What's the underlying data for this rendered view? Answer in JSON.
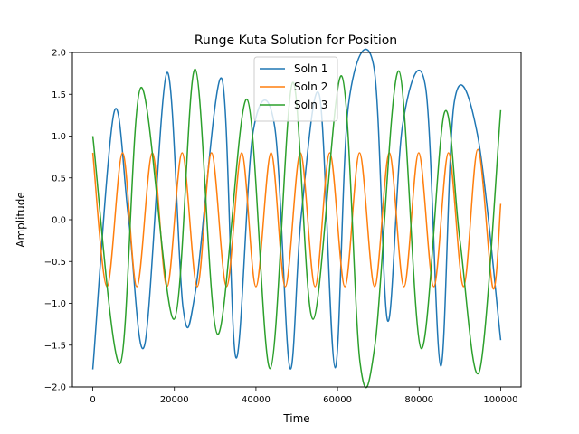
{
  "chart_data": {
    "type": "line",
    "title": "Runge Kuta Solution for Position",
    "xlabel": "Time",
    "ylabel": "Amplitude",
    "xlim": [
      -5000,
      105000
    ],
    "ylim": [
      -2.0,
      2.0
    ],
    "xticks": [
      0,
      20000,
      40000,
      60000,
      80000,
      100000
    ],
    "xtick_labels": [
      "0",
      "20000",
      "40000",
      "60000",
      "80000",
      "100000"
    ],
    "yticks": [
      -2.0,
      -1.5,
      -1.0,
      -0.5,
      0.0,
      0.5,
      1.0,
      1.5,
      2.0
    ],
    "ytick_labels": [
      "−2.0",
      "−1.5",
      "−1.0",
      "−0.5",
      "0.0",
      "0.5",
      "1.0",
      "1.5",
      "2.0"
    ],
    "grid": false,
    "legend_position": "top-center",
    "series": [
      {
        "name": "Soln 1",
        "color": "#1f77b4",
        "x": [
          0,
          5200,
          8800,
          12700,
          18200,
          22100,
          25200,
          31600,
          35100,
          39300,
          44600,
          48300,
          51100,
          55600,
          59400,
          62700,
          68900,
          72300,
          76000,
          81600,
          85300,
          88600,
          94300,
          100000
        ],
        "y": [
          -1.79,
          1.28,
          0.0,
          -1.5,
          1.76,
          -1.04,
          -0.85,
          1.69,
          -1.65,
          1.05,
          1.11,
          -1.77,
          0.05,
          1.48,
          -1.77,
          1.38,
          1.83,
          -1.21,
          1.15,
          1.58,
          -1.75,
          1.4,
          1.02,
          -1.44
        ]
      },
      {
        "name": "Soln 2",
        "color": "#ff7f0e",
        "x": [
          0,
          3500,
          7300,
          10800,
          14600,
          18200,
          21900,
          25600,
          29100,
          32800,
          36500,
          40000,
          43700,
          47200,
          50900,
          54500,
          58100,
          61800,
          65400,
          69100,
          72700,
          76300,
          79900,
          83600,
          87200,
          90900,
          94400,
          98100,
          100000
        ],
        "y": [
          0.8,
          -0.8,
          0.8,
          -0.8,
          0.8,
          -0.8,
          0.8,
          -0.8,
          0.8,
          -0.8,
          0.8,
          -0.8,
          0.8,
          -0.8,
          0.8,
          -0.8,
          0.8,
          -0.8,
          0.8,
          -0.8,
          0.8,
          -0.8,
          0.8,
          -0.8,
          0.8,
          -0.8,
          0.84,
          -0.82,
          0.19
        ]
      },
      {
        "name": "Soln 3",
        "color": "#2ca02c",
        "x": [
          0,
          6700,
          11800,
          19900,
          25100,
          30600,
          37800,
          43500,
          49000,
          54000,
          61000,
          65500,
          69300,
          75000,
          80500,
          86200,
          90000,
          94800,
          100000
        ],
        "y": [
          1.0,
          -1.72,
          1.58,
          -1.19,
          1.8,
          -1.37,
          1.44,
          -1.78,
          1.64,
          -1.19,
          1.72,
          -1.7,
          -1.45,
          1.78,
          -1.54,
          1.28,
          -0.24,
          -1.81,
          1.31
        ]
      }
    ]
  }
}
